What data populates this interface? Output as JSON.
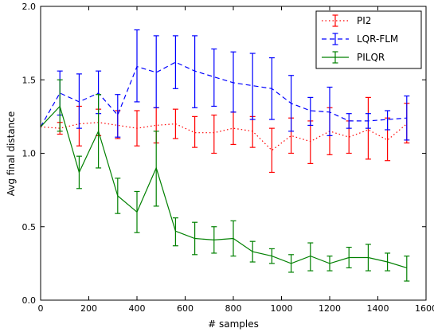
{
  "chart_data": {
    "type": "line",
    "title": "",
    "xlabel": "# samples",
    "ylabel": "Avg final distance",
    "xlim": [
      0,
      1600
    ],
    "ylim": [
      0.0,
      2.0
    ],
    "x_ticks": [
      "0",
      "200",
      "400",
      "600",
      "800",
      "1000",
      "1200",
      "1400",
      "1600"
    ],
    "y_ticks": [
      "0.0",
      "0.5",
      "1.0",
      "1.5",
      "2.0"
    ],
    "grid": false,
    "legend_position": "top-right",
    "x": [
      0,
      80,
      160,
      240,
      320,
      400,
      480,
      560,
      640,
      720,
      800,
      880,
      960,
      1040,
      1120,
      1200,
      1280,
      1360,
      1440,
      1520
    ],
    "series": [
      {
        "name": "PI2",
        "color": "#ff0000",
        "line_style": "dotted",
        "values": [
          1.18,
          1.17,
          1.2,
          1.21,
          1.19,
          1.17,
          1.19,
          1.2,
          1.14,
          1.14,
          1.17,
          1.15,
          1.02,
          1.12,
          1.08,
          1.15,
          1.11,
          1.16,
          1.09,
          1.2
        ],
        "err_low": [
          1.18,
          1.13,
          1.05,
          1.12,
          1.1,
          1.05,
          1.07,
          1.1,
          1.04,
          1.0,
          1.06,
          1.04,
          0.87,
          1.0,
          0.93,
          0.99,
          1.0,
          0.96,
          0.95,
          1.07
        ],
        "err_high": [
          1.18,
          1.21,
          1.32,
          1.3,
          1.29,
          1.29,
          1.31,
          1.3,
          1.25,
          1.26,
          1.28,
          1.25,
          1.17,
          1.24,
          1.22,
          1.31,
          1.22,
          1.38,
          1.24,
          1.34
        ]
      },
      {
        "name": "LQR-FLM",
        "color": "#0000ff",
        "line_style": "dashed",
        "values": [
          1.18,
          1.41,
          1.35,
          1.41,
          1.26,
          1.59,
          1.55,
          1.62,
          1.56,
          1.52,
          1.48,
          1.46,
          1.44,
          1.34,
          1.29,
          1.28,
          1.22,
          1.22,
          1.23,
          1.24
        ],
        "err_low": [
          1.18,
          1.26,
          1.17,
          1.27,
          1.11,
          1.35,
          1.31,
          1.44,
          1.31,
          1.32,
          1.28,
          1.23,
          1.23,
          1.15,
          1.19,
          1.12,
          1.17,
          1.17,
          1.16,
          1.09
        ],
        "err_high": [
          1.18,
          1.56,
          1.54,
          1.56,
          1.4,
          1.84,
          1.8,
          1.8,
          1.8,
          1.71,
          1.69,
          1.68,
          1.65,
          1.53,
          1.38,
          1.45,
          1.27,
          1.27,
          1.29,
          1.39
        ]
      },
      {
        "name": "PILQR",
        "color": "#008000",
        "line_style": "solid",
        "values": [
          1.18,
          1.32,
          0.87,
          1.15,
          0.71,
          0.6,
          0.9,
          0.47,
          0.42,
          0.41,
          0.42,
          0.33,
          0.3,
          0.25,
          0.3,
          0.25,
          0.29,
          0.29,
          0.26,
          0.22
        ],
        "err_low": [
          1.18,
          1.15,
          0.76,
          0.9,
          0.59,
          0.46,
          0.64,
          0.37,
          0.31,
          0.32,
          0.3,
          0.26,
          0.25,
          0.19,
          0.2,
          0.2,
          0.22,
          0.2,
          0.2,
          0.13
        ],
        "err_high": [
          1.18,
          1.5,
          0.98,
          1.4,
          0.83,
          0.74,
          1.15,
          0.56,
          0.53,
          0.5,
          0.54,
          0.4,
          0.35,
          0.31,
          0.39,
          0.3,
          0.36,
          0.38,
          0.32,
          0.3
        ]
      }
    ]
  }
}
